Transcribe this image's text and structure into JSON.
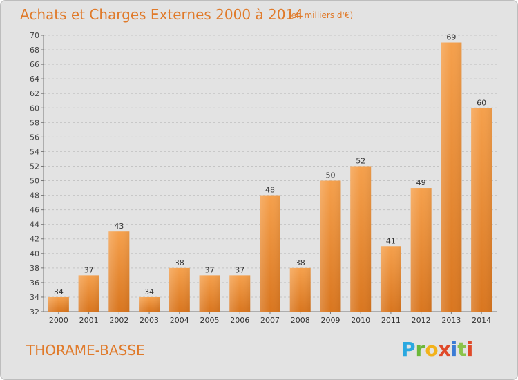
{
  "title": "Achats et Charges Externes 2000 à 2014",
  "subtitle": "(en milliers d'€)",
  "place_name": "THORAME-BASSE",
  "logo_text": "Proxiti",
  "colors": {
    "bar_light": "#f5a04c",
    "bar_dark": "#d9761f",
    "text_orange": "#e07a2a",
    "background": "#e3e3e3"
  },
  "chart_data": {
    "type": "bar",
    "title": "Achats et Charges Externes 2000 à 2014",
    "subtitle": "(en milliers d'€)",
    "categories": [
      "2000",
      "2001",
      "2002",
      "2003",
      "2004",
      "2005",
      "2006",
      "2007",
      "2008",
      "2009",
      "2010",
      "2011",
      "2012",
      "2013",
      "2014"
    ],
    "values": [
      34,
      37,
      43,
      34,
      38,
      37,
      37,
      48,
      38,
      50,
      52,
      41,
      49,
      69,
      60
    ],
    "ylim": [
      32,
      70
    ],
    "yticks": [
      32,
      34,
      36,
      38,
      40,
      42,
      44,
      46,
      48,
      50,
      52,
      54,
      56,
      58,
      60,
      62,
      64,
      66,
      68,
      70
    ],
    "grid": true,
    "xlabel": "",
    "ylabel": ""
  }
}
